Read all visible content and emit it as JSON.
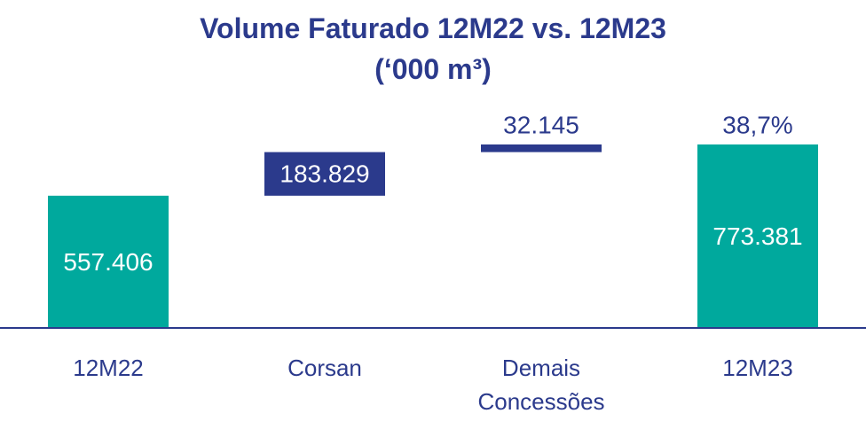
{
  "chart_data": {
    "type": "waterfall",
    "title": "Volume Faturado 12M22 vs. 12M23",
    "subtitle": "(‘000 m³)",
    "categories": [
      "12M22",
      "Corsan",
      "Demais Concessões",
      "12M23"
    ],
    "values": [
      557406,
      183829,
      32145,
      773381
    ],
    "value_labels": [
      "557.406",
      "183.829",
      "32.145",
      "773.381"
    ],
    "measure": [
      "total",
      "relative",
      "relative",
      "total"
    ],
    "colors": {
      "total": "#00a99d",
      "relative": "#2b3a8c"
    },
    "annotations": [
      {
        "text": "38,7%",
        "category": 3
      }
    ]
  }
}
